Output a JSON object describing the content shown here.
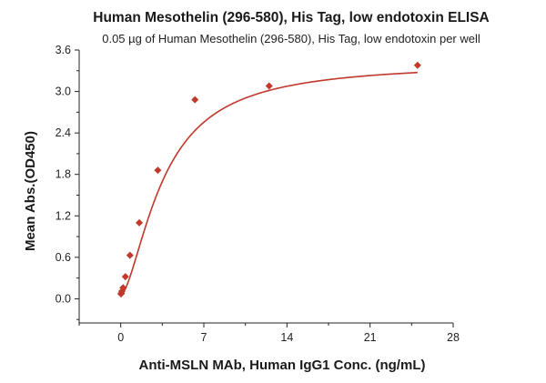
{
  "chart_data": {
    "type": "scatter",
    "title": "Human Mesothelin (296-580), His Tag, low endotoxin ELISA",
    "subtitle": "0.05 µg of Human Mesothelin (296-580), His Tag, low endotoxin per well",
    "xlabel": "Anti-MSLN MAb, Human IgG1 Conc. (ng/mL)",
    "ylabel": "Mean Abs.(OD450)",
    "xlim": [
      -3.5,
      28
    ],
    "ylim": [
      -0.35,
      3.6
    ],
    "xticks": [
      0,
      7,
      14,
      21,
      28
    ],
    "xtick_labels": [
      "0",
      "7",
      "14",
      "21",
      "28"
    ],
    "yticks": [
      0.0,
      0.6,
      1.2,
      1.8,
      2.4,
      3.0,
      3.6
    ],
    "ytick_labels": [
      "0.0",
      "0.6",
      "1.2",
      "1.8",
      "2.4",
      "3.0",
      "3.6"
    ],
    "grid": false,
    "legend": "none",
    "color": "#c0392b",
    "series": [
      {
        "x": [
          0.024,
          0.049,
          0.098,
          0.195,
          0.391,
          0.781,
          1.563,
          3.125,
          6.25,
          12.5,
          25
        ],
        "y": [
          0.07,
          0.08,
          0.11,
          0.16,
          0.32,
          0.63,
          1.1,
          1.86,
          2.88,
          3.08,
          3.38
        ],
        "marker": "diamond",
        "fit_line": "4-parameter logistic"
      }
    ]
  }
}
